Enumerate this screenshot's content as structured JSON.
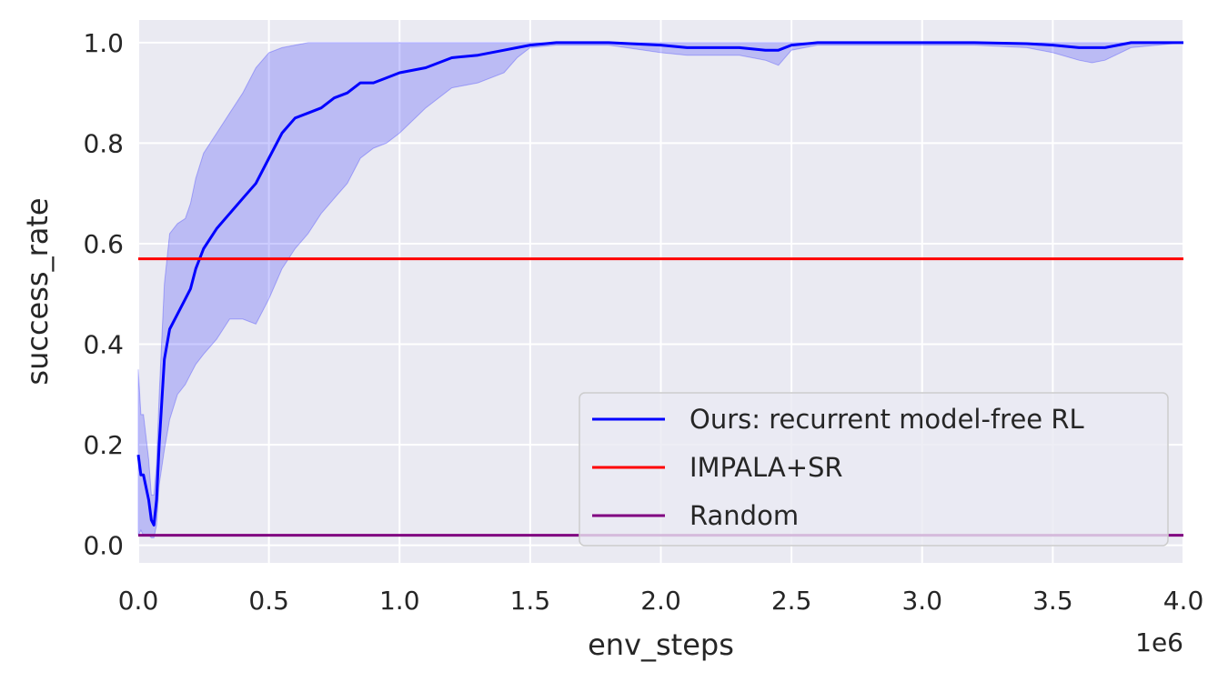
{
  "chart_data": {
    "type": "line",
    "xlabel": "env_steps",
    "ylabel": "success_rate",
    "x_offset_label": "1e6",
    "xlim": [
      0,
      4
    ],
    "ylim": [
      -0.035,
      1.045
    ],
    "x_ticks": [
      0.0,
      0.5,
      1.0,
      1.5,
      2.0,
      2.5,
      3.0,
      3.5,
      4.0
    ],
    "x_tick_labels": [
      "0.0",
      "0.5",
      "1.0",
      "1.5",
      "2.0",
      "2.5",
      "3.0",
      "3.5",
      "4.0"
    ],
    "y_ticks": [
      0.0,
      0.2,
      0.4,
      0.6,
      0.8,
      1.0
    ],
    "y_tick_labels": [
      "0.0",
      "0.2",
      "0.4",
      "0.6",
      "0.8",
      "1.0"
    ],
    "grid": true,
    "legend_position": "bottom-right",
    "series": [
      {
        "name": "Ours: recurrent model-free RL",
        "color": "#0000ff",
        "band_color": "#0000ff",
        "x": [
          0.0,
          0.01,
          0.02,
          0.04,
          0.05,
          0.06,
          0.07,
          0.08,
          0.1,
          0.12,
          0.15,
          0.18,
          0.2,
          0.22,
          0.25,
          0.3,
          0.35,
          0.4,
          0.45,
          0.5,
          0.55,
          0.6,
          0.65,
          0.7,
          0.75,
          0.8,
          0.85,
          0.9,
          0.95,
          1.0,
          1.1,
          1.2,
          1.3,
          1.4,
          1.45,
          1.5,
          1.6,
          1.8,
          2.0,
          2.1,
          2.2,
          2.3,
          2.4,
          2.45,
          2.5,
          2.6,
          2.8,
          3.0,
          3.2,
          3.4,
          3.5,
          3.6,
          3.65,
          3.7,
          3.8,
          4.0
        ],
        "y": [
          0.18,
          0.14,
          0.14,
          0.09,
          0.05,
          0.04,
          0.09,
          0.2,
          0.37,
          0.43,
          0.46,
          0.49,
          0.51,
          0.55,
          0.59,
          0.63,
          0.66,
          0.69,
          0.72,
          0.77,
          0.82,
          0.85,
          0.86,
          0.87,
          0.89,
          0.9,
          0.92,
          0.92,
          0.93,
          0.94,
          0.95,
          0.97,
          0.975,
          0.985,
          0.99,
          0.995,
          1.0,
          1.0,
          0.995,
          0.99,
          0.99,
          0.99,
          0.985,
          0.985,
          0.995,
          1.0,
          1.0,
          1.0,
          1.0,
          0.998,
          0.995,
          0.99,
          0.99,
          0.99,
          1.0,
          1.0
        ],
        "lower": [
          0.02,
          0.03,
          0.02,
          0.02,
          0.015,
          0.015,
          0.04,
          0.12,
          0.19,
          0.25,
          0.3,
          0.32,
          0.34,
          0.36,
          0.38,
          0.41,
          0.45,
          0.45,
          0.44,
          0.49,
          0.55,
          0.59,
          0.62,
          0.66,
          0.69,
          0.72,
          0.77,
          0.79,
          0.8,
          0.82,
          0.87,
          0.91,
          0.92,
          0.94,
          0.97,
          0.99,
          0.995,
          0.995,
          0.98,
          0.975,
          0.975,
          0.975,
          0.965,
          0.955,
          0.985,
          0.995,
          0.995,
          0.995,
          0.995,
          0.99,
          0.98,
          0.965,
          0.96,
          0.965,
          0.99,
          1.0
        ],
        "upper": [
          0.35,
          0.26,
          0.26,
          0.17,
          0.1,
          0.1,
          0.16,
          0.3,
          0.52,
          0.62,
          0.64,
          0.65,
          0.68,
          0.73,
          0.78,
          0.82,
          0.86,
          0.9,
          0.95,
          0.98,
          0.99,
          0.995,
          1.0,
          1.0,
          1.0,
          1.0,
          1.0,
          1.0,
          1.0,
          1.0,
          1.0,
          1.0,
          1.0,
          1.0,
          1.0,
          1.0,
          1.0,
          1.0,
          1.0,
          1.0,
          1.0,
          1.0,
          1.0,
          1.0,
          1.0,
          1.0,
          1.0,
          1.0,
          1.0,
          1.0,
          1.0,
          1.0,
          1.0,
          1.0,
          1.0,
          1.0
        ]
      },
      {
        "name": "IMPALA+SR",
        "color": "#ff0000",
        "x": [
          0,
          4
        ],
        "y": [
          0.57,
          0.57
        ]
      },
      {
        "name": "Random",
        "color": "#800080",
        "x": [
          0,
          4
        ],
        "y": [
          0.02,
          0.02
        ]
      }
    ]
  },
  "style": {
    "plot_bg": "#eaeaf2",
    "grid_color": "#ffffff",
    "text_color": "#262626",
    "legend_bg": "#eaeaf2",
    "legend_border": "#cccccc"
  }
}
